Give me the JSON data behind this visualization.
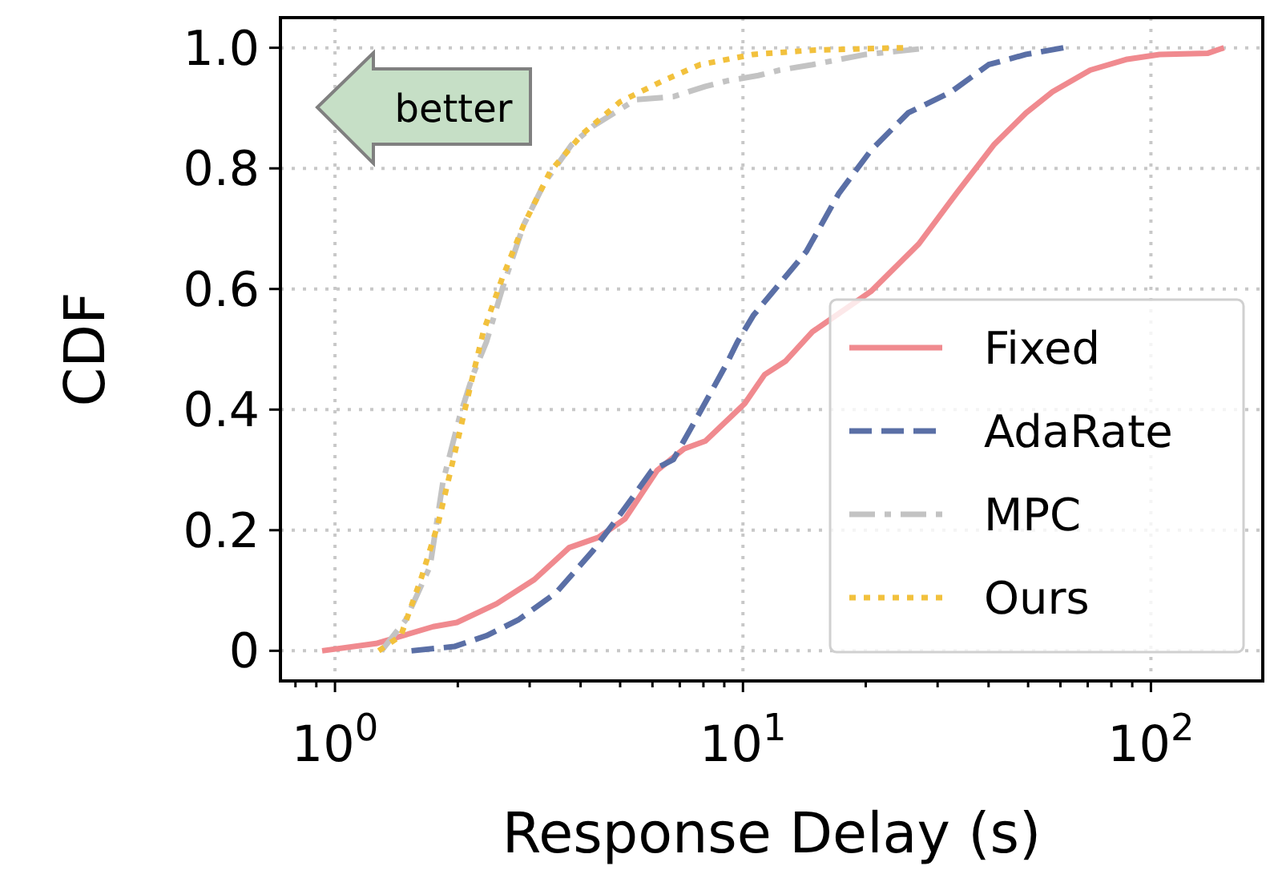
{
  "chart_data": {
    "type": "line",
    "xlabel": "Response Delay (s)",
    "ylabel": "CDF",
    "log": "x",
    "grid": true,
    "legend": "bottom right",
    "annotations": [
      "better"
    ],
    "xlim": [
      0.735,
      188
    ],
    "ylim": [
      -0.05,
      1.05
    ],
    "xticks": [
      {
        "value": 0.8,
        "label": null
      },
      {
        "value": 0.9,
        "label": null
      },
      {
        "value": 1,
        "label": "10$^{0}$"
      },
      {
        "value": 2,
        "label": null
      },
      {
        "value": 3,
        "label": null
      },
      {
        "value": 4,
        "label": null
      },
      {
        "value": 5,
        "label": null
      },
      {
        "value": 6,
        "label": null
      },
      {
        "value": 7,
        "label": null
      },
      {
        "value": 8,
        "label": null
      },
      {
        "value": 9,
        "label": null
      },
      {
        "value": 10,
        "label": "10$^{1}$"
      },
      {
        "value": 20,
        "label": null
      },
      {
        "value": 30,
        "label": null
      },
      {
        "value": 40,
        "label": null
      },
      {
        "value": 50,
        "label": null
      },
      {
        "value": 60,
        "label": null
      },
      {
        "value": 70,
        "label": null
      },
      {
        "value": 80,
        "label": null
      },
      {
        "value": 90,
        "label": null
      },
      {
        "value": 100,
        "label": "10$^{2}$"
      }
    ],
    "yticks": [
      0,
      0.2,
      0.4,
      0.6,
      0.8,
      {
        "value": 1,
        "label": "1.0"
      }
    ],
    "series": [
      {
        "name": "Fixed",
        "color": "#f08a8f",
        "line_style": "solid",
        "x": [
          0.93,
          1.26,
          1.74,
          1.99,
          2.49,
          3.08,
          3.75,
          4.42,
          5.14,
          6.16,
          7.17,
          8.09,
          10.1,
          11.3,
          12.7,
          14.8,
          20.6,
          27.0,
          33.4,
          41.2,
          49.4,
          57.4,
          71,
          87.5,
          105,
          138,
          151
        ],
        "values": [
          0,
          0.012,
          0.04,
          0.047,
          0.078,
          0.118,
          0.171,
          0.188,
          0.219,
          0.299,
          0.335,
          0.348,
          0.41,
          0.458,
          0.48,
          0.529,
          0.596,
          0.675,
          0.759,
          0.839,
          0.892,
          0.927,
          0.963,
          0.981,
          0.989,
          0.991,
          1.0
        ]
      },
      {
        "name": "AdaRate",
        "color": "#5a6fa6",
        "line_style": "dashed",
        "x": [
          1.54,
          1.96,
          2.35,
          2.81,
          3.48,
          4.29,
          5.14,
          5.98,
          6.75,
          7.85,
          9.12,
          9.69,
          10.6,
          12.0,
          14.3,
          17.2,
          20.6,
          25.4,
          32.4,
          40.0,
          49.4,
          61
        ],
        "values": [
          0,
          0.007,
          0.025,
          0.051,
          0.096,
          0.166,
          0.237,
          0.299,
          0.317,
          0.396,
          0.476,
          0.512,
          0.556,
          0.6,
          0.662,
          0.759,
          0.83,
          0.892,
          0.927,
          0.972,
          0.989,
          1.0
        ]
      },
      {
        "name": "MPC",
        "color": "#c3c3c3",
        "line_style": "dashdot",
        "x": [
          1.3,
          1.49,
          1.71,
          1.84,
          2.02,
          2.18,
          2.35,
          2.57,
          2.9,
          3.27,
          3.8,
          4.29,
          5.46,
          6.75,
          8.09,
          9.12,
          10.9,
          12.3,
          14.8,
          20.0,
          27.0
        ],
        "values": [
          0,
          0.051,
          0.14,
          0.281,
          0.388,
          0.458,
          0.512,
          0.6,
          0.706,
          0.777,
          0.839,
          0.87,
          0.914,
          0.919,
          0.936,
          0.945,
          0.954,
          0.963,
          0.972,
          0.989,
          0.998
        ]
      },
      {
        "name": "Ours",
        "color": "#f2c13d",
        "line_style": "dotted",
        "x": [
          1.28,
          1.45,
          1.63,
          1.79,
          1.99,
          2.18,
          2.31,
          2.57,
          2.9,
          3.37,
          4.04,
          4.99,
          6.35,
          7.85,
          10.6,
          14.8,
          24.7
        ],
        "values": [
          0,
          0.025,
          0.122,
          0.211,
          0.343,
          0.458,
          0.529,
          0.618,
          0.706,
          0.795,
          0.857,
          0.91,
          0.945,
          0.972,
          0.989,
          0.996,
          1.0
        ]
      }
    ]
  }
}
